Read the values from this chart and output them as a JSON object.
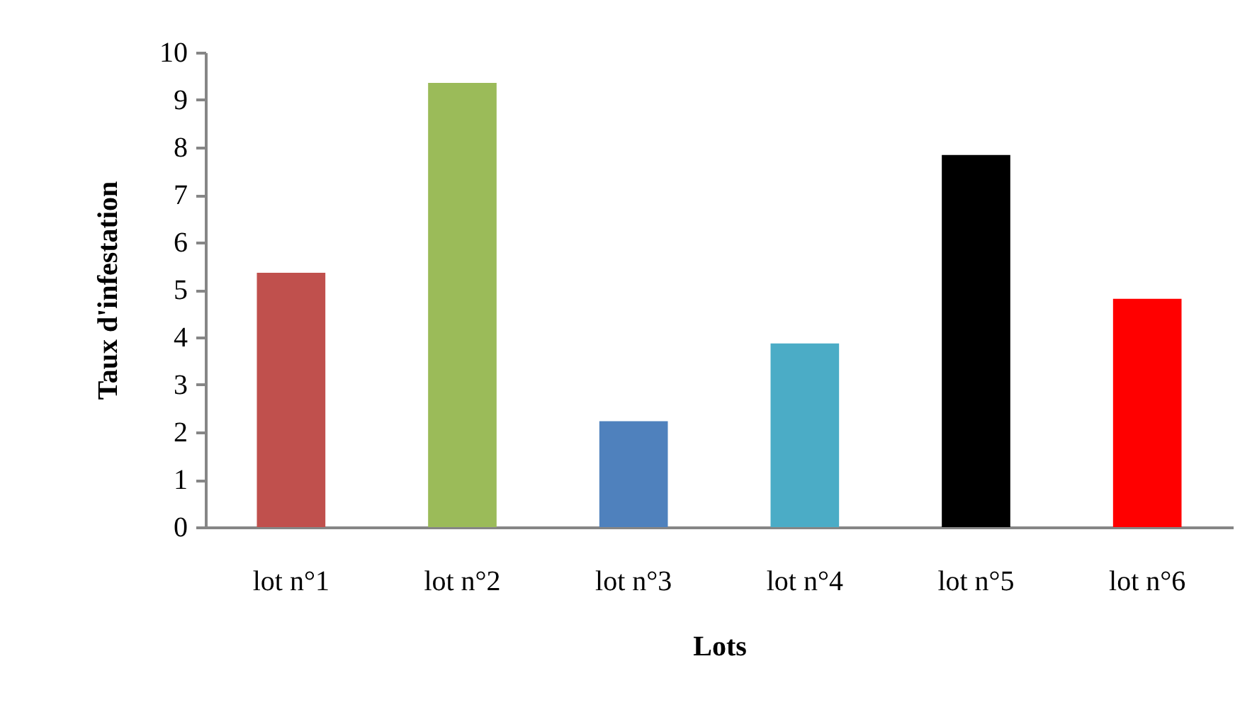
{
  "chart_data": {
    "type": "bar",
    "xlabel": "Lots",
    "ylabel": "Taux d'infestation",
    "categories": [
      "lot n°1",
      "lot n°2",
      "lot n°3",
      "lot n°4",
      "lot n°5",
      "lot n°6"
    ],
    "values": [
      5.36,
      9.36,
      2.23,
      3.87,
      7.84,
      4.81
    ],
    "colors": [
      "#c0504d",
      "#9bbb59",
      "#4f81bd",
      "#4bacc6",
      "#000000",
      "#ff0000"
    ],
    "ylim": [
      0,
      10
    ],
    "yticks": [
      0,
      1,
      2,
      3,
      4,
      5,
      6,
      7,
      8,
      9,
      10
    ],
    "grid": false,
    "legend": false
  }
}
